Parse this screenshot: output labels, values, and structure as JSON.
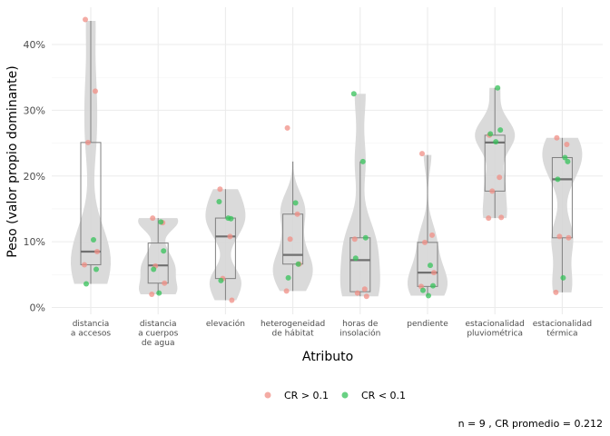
{
  "chart_data": {
    "type": "violin-box-jitter",
    "xlabel": "Atributo",
    "ylabel": "Peso (valor propio dominante)",
    "ylim": [
      0,
      0.45
    ],
    "yticks": [
      0,
      0.1,
      0.2,
      0.3,
      0.4
    ],
    "ytick_labels": [
      "0%",
      "10%",
      "20%",
      "30%",
      "40%"
    ],
    "grid": true,
    "legend_position": "bottom",
    "caption": "n = 9 , CR promedio = 0.212",
    "colors": {
      "cr_gt": "#F08F86",
      "cr_lt": "#35C15A",
      "violin": "#D6D6D6",
      "box": "#808080",
      "median": "#707070"
    },
    "legend": [
      {
        "label": "CR > 0.1",
        "color": "#F08F86"
      },
      {
        "label": "CR < 0.1",
        "color": "#35C15A"
      }
    ],
    "categories": [
      {
        "label": [
          "distancia",
          "a accesos"
        ],
        "box": {
          "q1": 0.065,
          "median": 0.085,
          "q3": 0.251,
          "whisker_low": 0.036,
          "whisker_high": 0.436
        },
        "violin_range": [
          0.036,
          0.436
        ],
        "points": [
          {
            "v": 0.438,
            "cr": "gt"
          },
          {
            "v": 0.329,
            "cr": "gt"
          },
          {
            "v": 0.251,
            "cr": "gt"
          },
          {
            "v": 0.085,
            "cr": "gt"
          },
          {
            "v": 0.065,
            "cr": "gt"
          },
          {
            "v": 0.103,
            "cr": "lt"
          },
          {
            "v": 0.058,
            "cr": "lt"
          },
          {
            "v": 0.036,
            "cr": "lt"
          }
        ]
      },
      {
        "label": [
          "distancia",
          "a cuerpos",
          "de agua"
        ],
        "box": {
          "q1": 0.037,
          "median": 0.064,
          "q3": 0.098,
          "whisker_low": 0.02,
          "whisker_high": 0.136
        },
        "violin_range": [
          0.02,
          0.136
        ],
        "points": [
          {
            "v": 0.136,
            "cr": "gt"
          },
          {
            "v": 0.129,
            "cr": "gt"
          },
          {
            "v": 0.063,
            "cr": "gt"
          },
          {
            "v": 0.037,
            "cr": "gt"
          },
          {
            "v": 0.02,
            "cr": "gt"
          },
          {
            "v": 0.13,
            "cr": "lt"
          },
          {
            "v": 0.086,
            "cr": "lt"
          },
          {
            "v": 0.058,
            "cr": "lt"
          },
          {
            "v": 0.022,
            "cr": "lt"
          }
        ]
      },
      {
        "label": [
          "elevación"
        ],
        "box": {
          "q1": 0.044,
          "median": 0.108,
          "q3": 0.136,
          "whisker_low": 0.011,
          "whisker_high": 0.18
        },
        "violin_range": [
          0.011,
          0.18
        ],
        "points": [
          {
            "v": 0.18,
            "cr": "gt"
          },
          {
            "v": 0.108,
            "cr": "gt"
          },
          {
            "v": 0.044,
            "cr": "gt"
          },
          {
            "v": 0.011,
            "cr": "gt"
          },
          {
            "v": 0.161,
            "cr": "lt"
          },
          {
            "v": 0.136,
            "cr": "lt"
          },
          {
            "v": 0.135,
            "cr": "lt"
          },
          {
            "v": 0.041,
            "cr": "lt"
          }
        ]
      },
      {
        "label": [
          "heterogeneidad",
          "de hábitat"
        ],
        "box": {
          "q1": 0.066,
          "median": 0.08,
          "q3": 0.142,
          "whisker_low": 0.025,
          "whisker_high": 0.222
        },
        "violin_range": [
          0.025,
          0.222
        ],
        "points": [
          {
            "v": 0.273,
            "cr": "gt"
          },
          {
            "v": 0.142,
            "cr": "gt"
          },
          {
            "v": 0.104,
            "cr": "gt"
          },
          {
            "v": 0.066,
            "cr": "gt"
          },
          {
            "v": 0.025,
            "cr": "gt"
          },
          {
            "v": 0.159,
            "cr": "lt"
          },
          {
            "v": 0.066,
            "cr": "lt"
          },
          {
            "v": 0.045,
            "cr": "lt"
          }
        ]
      },
      {
        "label": [
          "horas de",
          "insolación"
        ],
        "box": {
          "q1": 0.024,
          "median": 0.072,
          "q3": 0.106,
          "whisker_low": 0.017,
          "whisker_high": 0.222
        },
        "violin_range": [
          0.017,
          0.325
        ],
        "points": [
          {
            "v": 0.104,
            "cr": "gt"
          },
          {
            "v": 0.028,
            "cr": "gt"
          },
          {
            "v": 0.022,
            "cr": "gt"
          },
          {
            "v": 0.017,
            "cr": "gt"
          },
          {
            "v": 0.325,
            "cr": "lt"
          },
          {
            "v": 0.222,
            "cr": "lt"
          },
          {
            "v": 0.106,
            "cr": "lt"
          },
          {
            "v": 0.075,
            "cr": "lt"
          }
        ]
      },
      {
        "label": [
          "pendiente"
        ],
        "box": {
          "q1": 0.032,
          "median": 0.053,
          "q3": 0.099,
          "whisker_low": 0.018,
          "whisker_high": 0.232
        },
        "violin_range": [
          0.018,
          0.232
        ],
        "points": [
          {
            "v": 0.234,
            "cr": "gt"
          },
          {
            "v": 0.11,
            "cr": "gt"
          },
          {
            "v": 0.099,
            "cr": "gt"
          },
          {
            "v": 0.053,
            "cr": "gt"
          },
          {
            "v": 0.032,
            "cr": "gt"
          },
          {
            "v": 0.064,
            "cr": "lt"
          },
          {
            "v": 0.033,
            "cr": "lt"
          },
          {
            "v": 0.026,
            "cr": "lt"
          },
          {
            "v": 0.018,
            "cr": "lt"
          }
        ]
      },
      {
        "label": [
          "estacionalidad",
          "pluviométrica"
        ],
        "box": {
          "q1": 0.177,
          "median": 0.251,
          "q3": 0.262,
          "whisker_low": 0.136,
          "whisker_high": 0.334
        },
        "violin_range": [
          0.136,
          0.334
        ],
        "points": [
          {
            "v": 0.262,
            "cr": "gt"
          },
          {
            "v": 0.198,
            "cr": "gt"
          },
          {
            "v": 0.177,
            "cr": "gt"
          },
          {
            "v": 0.137,
            "cr": "gt"
          },
          {
            "v": 0.136,
            "cr": "gt"
          },
          {
            "v": 0.334,
            "cr": "lt"
          },
          {
            "v": 0.27,
            "cr": "lt"
          },
          {
            "v": 0.264,
            "cr": "lt"
          },
          {
            "v": 0.252,
            "cr": "lt"
          }
        ]
      },
      {
        "label": [
          "estacionalidad",
          "térmica"
        ],
        "box": {
          "q1": 0.106,
          "median": 0.195,
          "q3": 0.228,
          "whisker_low": 0.023,
          "whisker_high": 0.258
        },
        "violin_range": [
          0.023,
          0.258
        ],
        "points": [
          {
            "v": 0.258,
            "cr": "gt"
          },
          {
            "v": 0.248,
            "cr": "gt"
          },
          {
            "v": 0.108,
            "cr": "gt"
          },
          {
            "v": 0.106,
            "cr": "gt"
          },
          {
            "v": 0.023,
            "cr": "gt"
          },
          {
            "v": 0.228,
            "cr": "lt"
          },
          {
            "v": 0.222,
            "cr": "lt"
          },
          {
            "v": 0.195,
            "cr": "lt"
          },
          {
            "v": 0.045,
            "cr": "lt"
          }
        ]
      }
    ]
  }
}
